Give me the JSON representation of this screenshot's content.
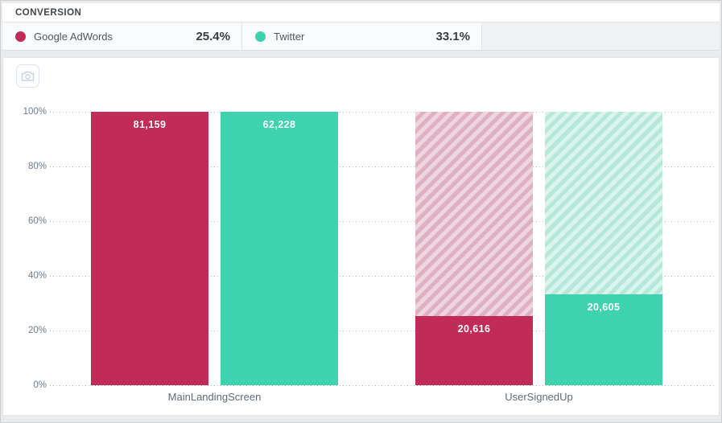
{
  "header": {
    "title": "CONVERSION"
  },
  "toolbar": {
    "export_icon": "camera-icon"
  },
  "legend": [
    {
      "name": "Google AdWords",
      "rate": "25.4%",
      "color": "#c02b57"
    },
    {
      "name": "Twitter",
      "rate": "33.1%",
      "color": "#3ed2ae"
    }
  ],
  "chart_data": {
    "type": "bar",
    "subtype": "funnel-conversion",
    "title": "CONVERSION",
    "categories": [
      "MainLandingScreen",
      "UserSignedUp"
    ],
    "series": [
      {
        "name": "Google AdWords",
        "color": "#c02b57",
        "hatch_colors": [
          "#eed6df",
          "#dfafc4"
        ],
        "values": [
          81159,
          20616
        ],
        "value_labels": [
          "81,159",
          "20,616"
        ],
        "percents": [
          100,
          25.4
        ],
        "overall_conversion": "25.4%"
      },
      {
        "name": "Twitter",
        "color": "#3ed2ae",
        "hatch_colors": [
          "#dbf4ed",
          "#b4e8d9"
        ],
        "values": [
          62228,
          20605
        ],
        "value_labels": [
          "62,228",
          "20,605"
        ],
        "percents": [
          100,
          33.1
        ],
        "overall_conversion": "33.1%"
      }
    ],
    "y_ticks": [
      "100%",
      "80%",
      "60%",
      "40%",
      "20%",
      "0%"
    ],
    "ylim": [
      0,
      100
    ],
    "grid": "dotted-horizontal",
    "legend_position": "top"
  }
}
